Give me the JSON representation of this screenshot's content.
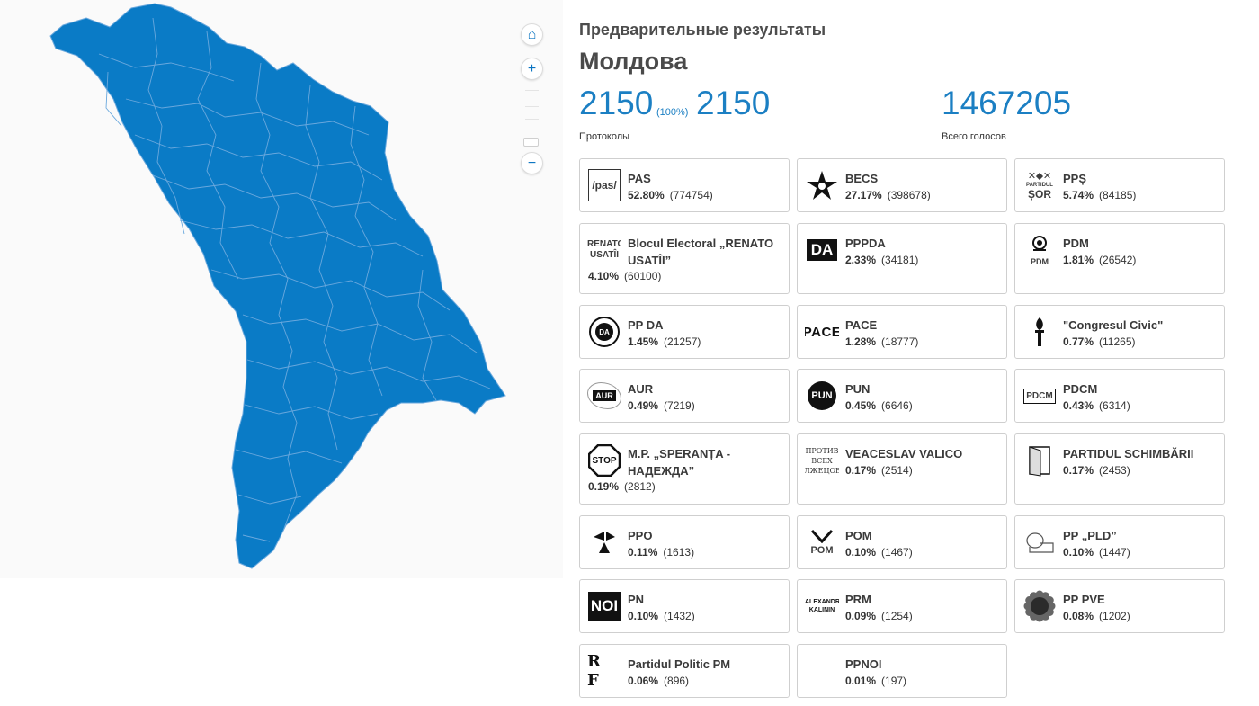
{
  "header": {
    "subtitle": "Предварительные результаты",
    "region": "Молдова",
    "protocols_done": "2150",
    "protocols_pct": "(100%)",
    "protocols_total": "2150",
    "protocols_label": "Протоколы",
    "total_votes": "1467205",
    "total_votes_label": "Всего голосов"
  },
  "map": {
    "fill_color": "#0a7bc6",
    "border_color": "#6aa8dd",
    "controls": [
      "home-icon",
      "plus-icon",
      "minus-icon"
    ],
    "home_glyph": "⌂",
    "zoom_in_glyph": "+",
    "zoom_out_glyph": "−"
  },
  "parties": [
    {
      "name": "PAS",
      "pct": "52.80%",
      "votes": "(774754)",
      "logo": "pas-logo",
      "logo_text": "/pas/"
    },
    {
      "name": "BECS",
      "pct": "27.17%",
      "votes": "(398678)",
      "logo": "star-sickle-logo",
      "logo_text": ""
    },
    {
      "name": "PPȘ",
      "pct": "5.74%",
      "votes": "(84185)",
      "logo": "sor-logo",
      "logo_text": "ȘOR"
    },
    {
      "name": "Blocul Electoral „RENATO USATÎI”",
      "pct": "4.10%",
      "votes": "(60100)",
      "logo": "renato-usatii-logo",
      "logo_text": "RENATO USATÎI"
    },
    {
      "name": "PPPDA",
      "pct": "2.33%",
      "votes": "(34181)",
      "logo": "platforma-da-logo",
      "logo_text": "DA"
    },
    {
      "name": "PDM",
      "pct": "1.81%",
      "votes": "(26542)",
      "logo": "pdm-rose-logo",
      "logo_text": "PDM"
    },
    {
      "name": "PP DA",
      "pct": "1.45%",
      "votes": "(21257)",
      "logo": "pp-da-circle-logo",
      "logo_text": "DA"
    },
    {
      "name": "PACE",
      "pct": "1.28%",
      "votes": "(18777)",
      "logo": "pace-logo",
      "logo_text": "PACE"
    },
    {
      "name": "\"Congresul Civic\"",
      "pct": "0.77%",
      "votes": "(11265)",
      "logo": "torch-logo",
      "logo_text": ""
    },
    {
      "name": "AUR",
      "pct": "0.49%",
      "votes": "(7219)",
      "logo": "aur-logo",
      "logo_text": "AUR"
    },
    {
      "name": "PUN",
      "pct": "0.45%",
      "votes": "(6646)",
      "logo": "pun-logo",
      "logo_text": "PUN"
    },
    {
      "name": "PDCM",
      "pct": "0.43%",
      "votes": "(6314)",
      "logo": "pdcm-logo",
      "logo_text": "PDCM"
    },
    {
      "name": "M.P. „SPERANȚA - НАДЕЖДА”",
      "pct": "0.19%",
      "votes": "(2812)",
      "logo": "stop-genocid-logo",
      "logo_text": "STOP"
    },
    {
      "name": "VEACESLAV VALICO",
      "pct": "0.17%",
      "votes": "(2514)",
      "logo": "protiv-vseh-logo",
      "logo_text": "ПРОТИВ ВСЕХ ЛЖЕЦОВ"
    },
    {
      "name": "PARTIDUL SCHIMBĂRII",
      "pct": "0.17%",
      "votes": "(2453)",
      "logo": "door-logo",
      "logo_text": ""
    },
    {
      "name": "PPO",
      "pct": "0.11%",
      "votes": "(1613)",
      "logo": "ppo-logo",
      "logo_text": ""
    },
    {
      "name": "POM",
      "pct": "0.10%",
      "votes": "(1467)",
      "logo": "pom-logo",
      "logo_text": "POM"
    },
    {
      "name": "PP „PLD”",
      "pct": "0.10%",
      "votes": "(1447)",
      "logo": "lion-logo",
      "logo_text": ""
    },
    {
      "name": "PN",
      "pct": "0.10%",
      "votes": "(1432)",
      "logo": "noi-logo",
      "logo_text": "NOI"
    },
    {
      "name": "PRM",
      "pct": "0.09%",
      "votes": "(1254)",
      "logo": "kalinin-logo",
      "logo_text": "ALEXANDR KALININ"
    },
    {
      "name": "PP PVE",
      "pct": "0.08%",
      "votes": "(1202)",
      "logo": "sunflower-logo",
      "logo_text": ""
    },
    {
      "name": "Partidul Politic PM",
      "pct": "0.06%",
      "votes": "(896)",
      "logo": "rf-logo",
      "logo_text": "R F"
    },
    {
      "name": "PPNOI",
      "pct": "0.01%",
      "votes": "(197)",
      "logo": "empty-logo",
      "logo_text": ""
    }
  ]
}
